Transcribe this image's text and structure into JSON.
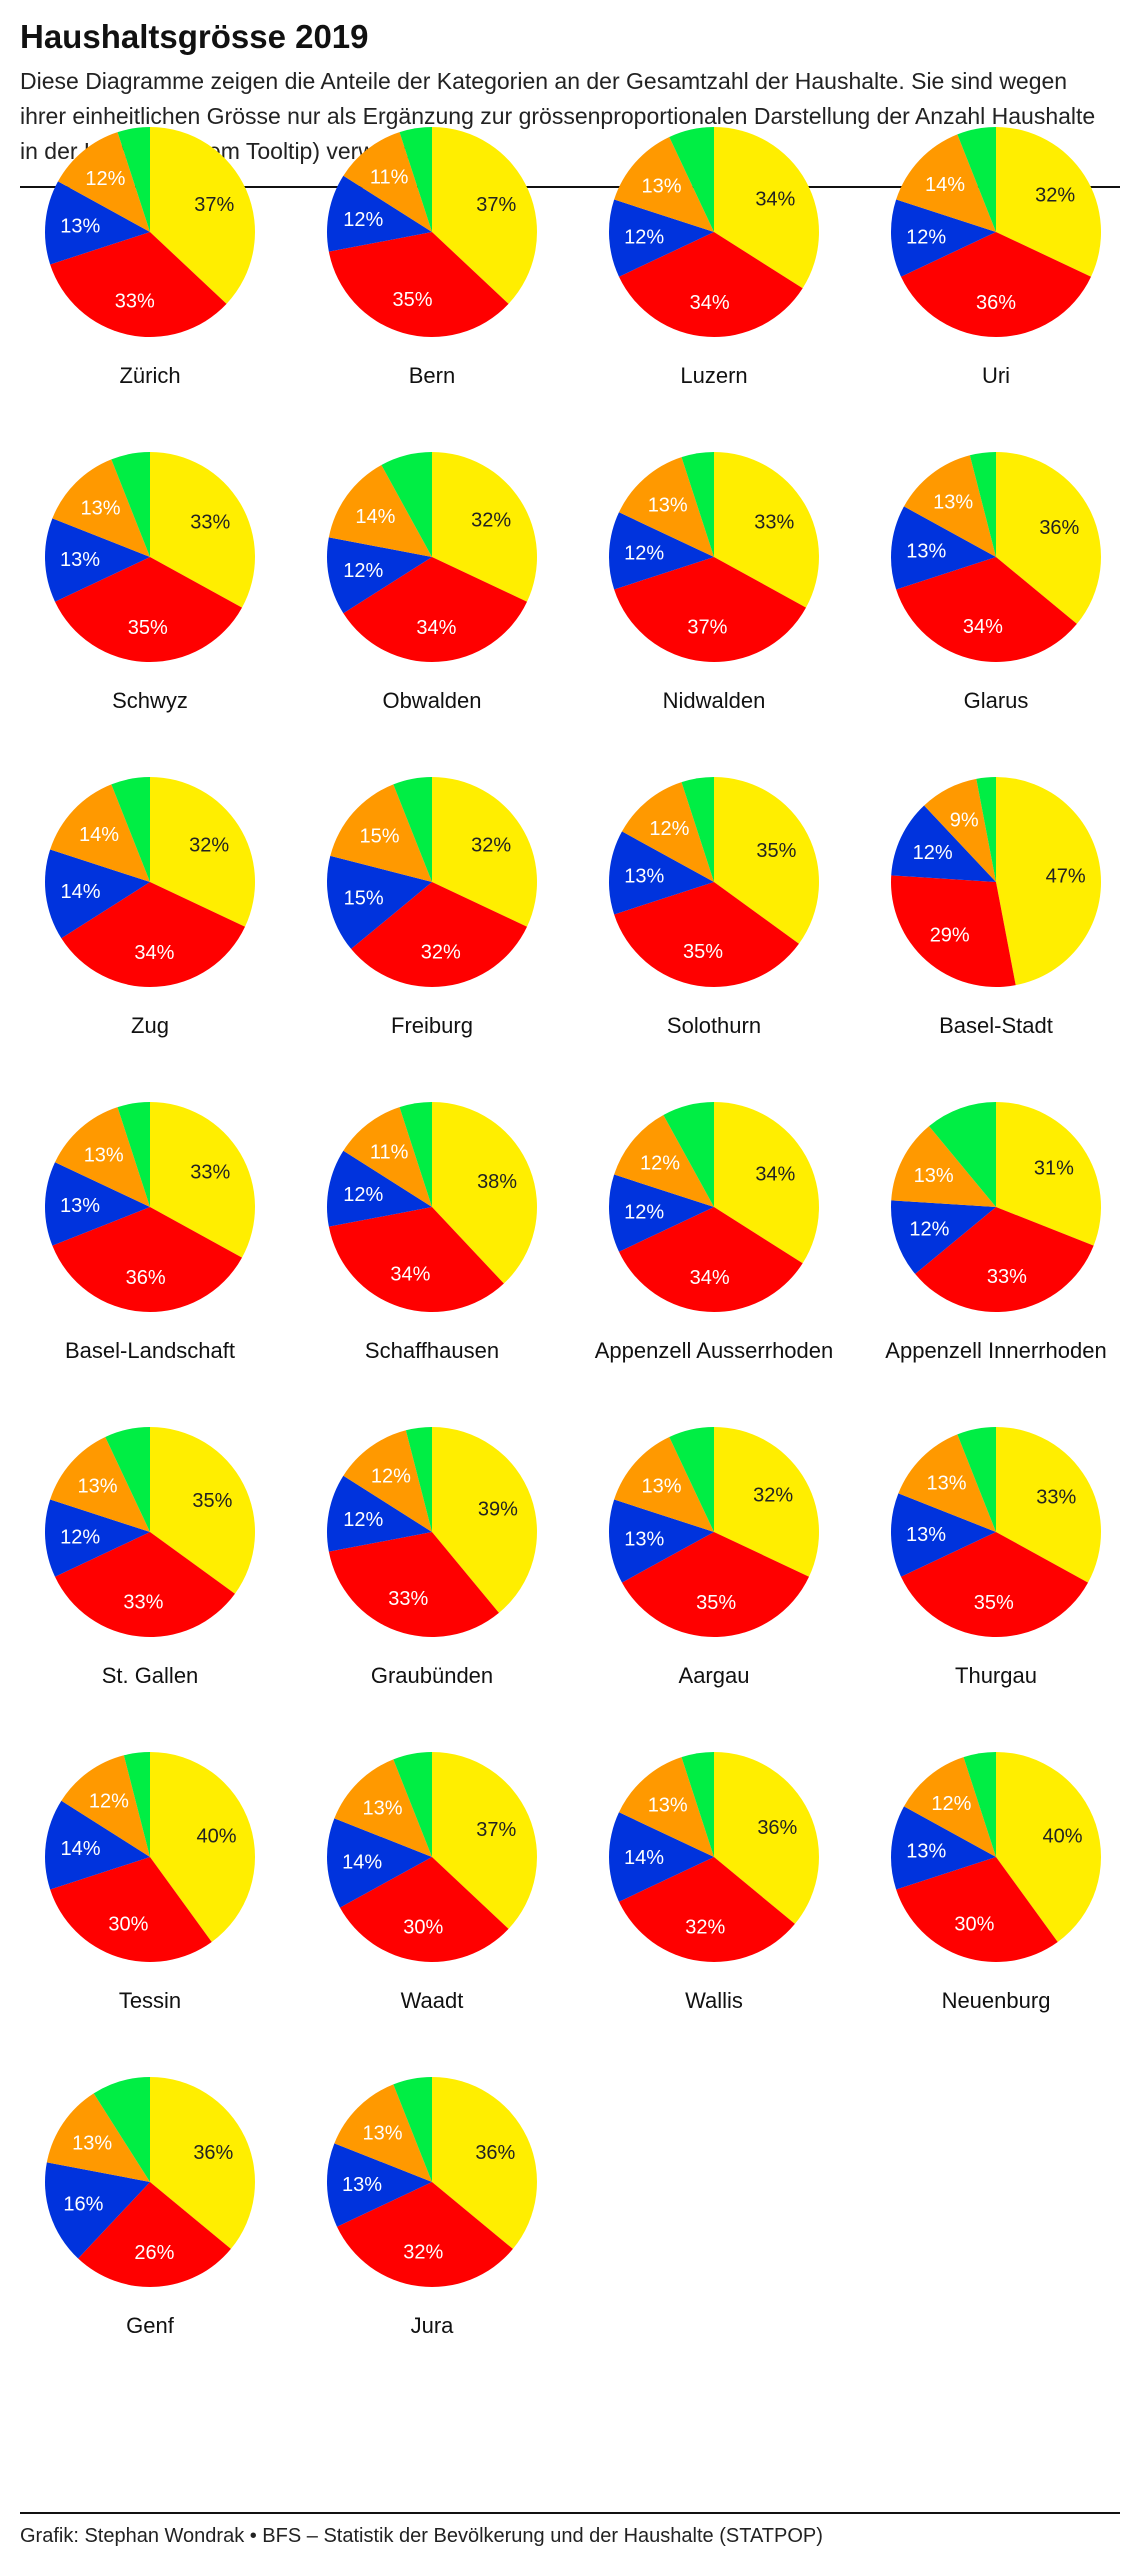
{
  "title": "Haushaltsgrösse 2019",
  "subtitle": "Diese Diagramme zeigen die Anteile der Kategorien an der Gesamtzahl der Haushalte. Sie sind wegen ihrer einheitlichen Grösse nur als Ergänzung zur grössenproportionalen Darstellung der Anzahl Haushalte in der Karte (in einem Tooltip) verwendbar.",
  "footer": "Grafik: Stephan Wondrak • BFS – Statistik der Bevölkerung und der Haushalte (STATPOP)",
  "colors": [
    "#ffee00",
    "#ff0000",
    "#0033dd",
    "#ff9900",
    "#00ee44"
  ],
  "chart_data": {
    "type": "pie",
    "unit": "%",
    "charts": [
      {
        "name": "Zürich",
        "values": [
          37,
          33,
          13,
          12,
          5
        ]
      },
      {
        "name": "Bern",
        "values": [
          37,
          35,
          12,
          11,
          5
        ]
      },
      {
        "name": "Luzern",
        "values": [
          34,
          34,
          12,
          13,
          7
        ]
      },
      {
        "name": "Uri",
        "values": [
          32,
          36,
          12,
          14,
          6
        ]
      },
      {
        "name": "Schwyz",
        "values": [
          33,
          35,
          13,
          13,
          6
        ]
      },
      {
        "name": "Obwalden",
        "values": [
          32,
          34,
          12,
          14,
          8
        ]
      },
      {
        "name": "Nidwalden",
        "values": [
          33,
          37,
          12,
          13,
          5
        ]
      },
      {
        "name": "Glarus",
        "values": [
          36,
          34,
          13,
          13,
          4
        ]
      },
      {
        "name": "Zug",
        "values": [
          32,
          34,
          14,
          14,
          6
        ]
      },
      {
        "name": "Freiburg",
        "values": [
          32,
          32,
          15,
          15,
          6
        ]
      },
      {
        "name": "Solothurn",
        "values": [
          35,
          35,
          13,
          12,
          5
        ]
      },
      {
        "name": "Basel-Stadt",
        "values": [
          47,
          29,
          12,
          9,
          3
        ]
      },
      {
        "name": "Basel-Landschaft",
        "values": [
          33,
          36,
          13,
          13,
          5
        ]
      },
      {
        "name": "Schaffhausen",
        "values": [
          38,
          34,
          12,
          11,
          5
        ]
      },
      {
        "name": "Appenzell Ausserrhoden",
        "values": [
          34,
          34,
          12,
          12,
          8
        ]
      },
      {
        "name": "Appenzell Innerrhoden",
        "values": [
          31,
          33,
          12,
          13,
          11
        ]
      },
      {
        "name": "St. Gallen",
        "values": [
          35,
          33,
          12,
          13,
          7
        ]
      },
      {
        "name": "Graubünden",
        "values": [
          39,
          33,
          12,
          12,
          4
        ]
      },
      {
        "name": "Aargau",
        "values": [
          32,
          35,
          13,
          13,
          7
        ]
      },
      {
        "name": "Thurgau",
        "values": [
          33,
          35,
          13,
          13,
          6
        ]
      },
      {
        "name": "Tessin",
        "values": [
          40,
          30,
          14,
          12,
          4
        ]
      },
      {
        "name": "Waadt",
        "values": [
          37,
          30,
          14,
          13,
          6
        ]
      },
      {
        "name": "Wallis",
        "values": [
          36,
          32,
          14,
          13,
          5
        ]
      },
      {
        "name": "Neuenburg",
        "values": [
          40,
          30,
          13,
          12,
          5
        ]
      },
      {
        "name": "Genf",
        "values": [
          36,
          26,
          16,
          13,
          9
        ]
      },
      {
        "name": "Jura",
        "values": [
          36,
          32,
          13,
          13,
          6
        ]
      }
    ]
  }
}
